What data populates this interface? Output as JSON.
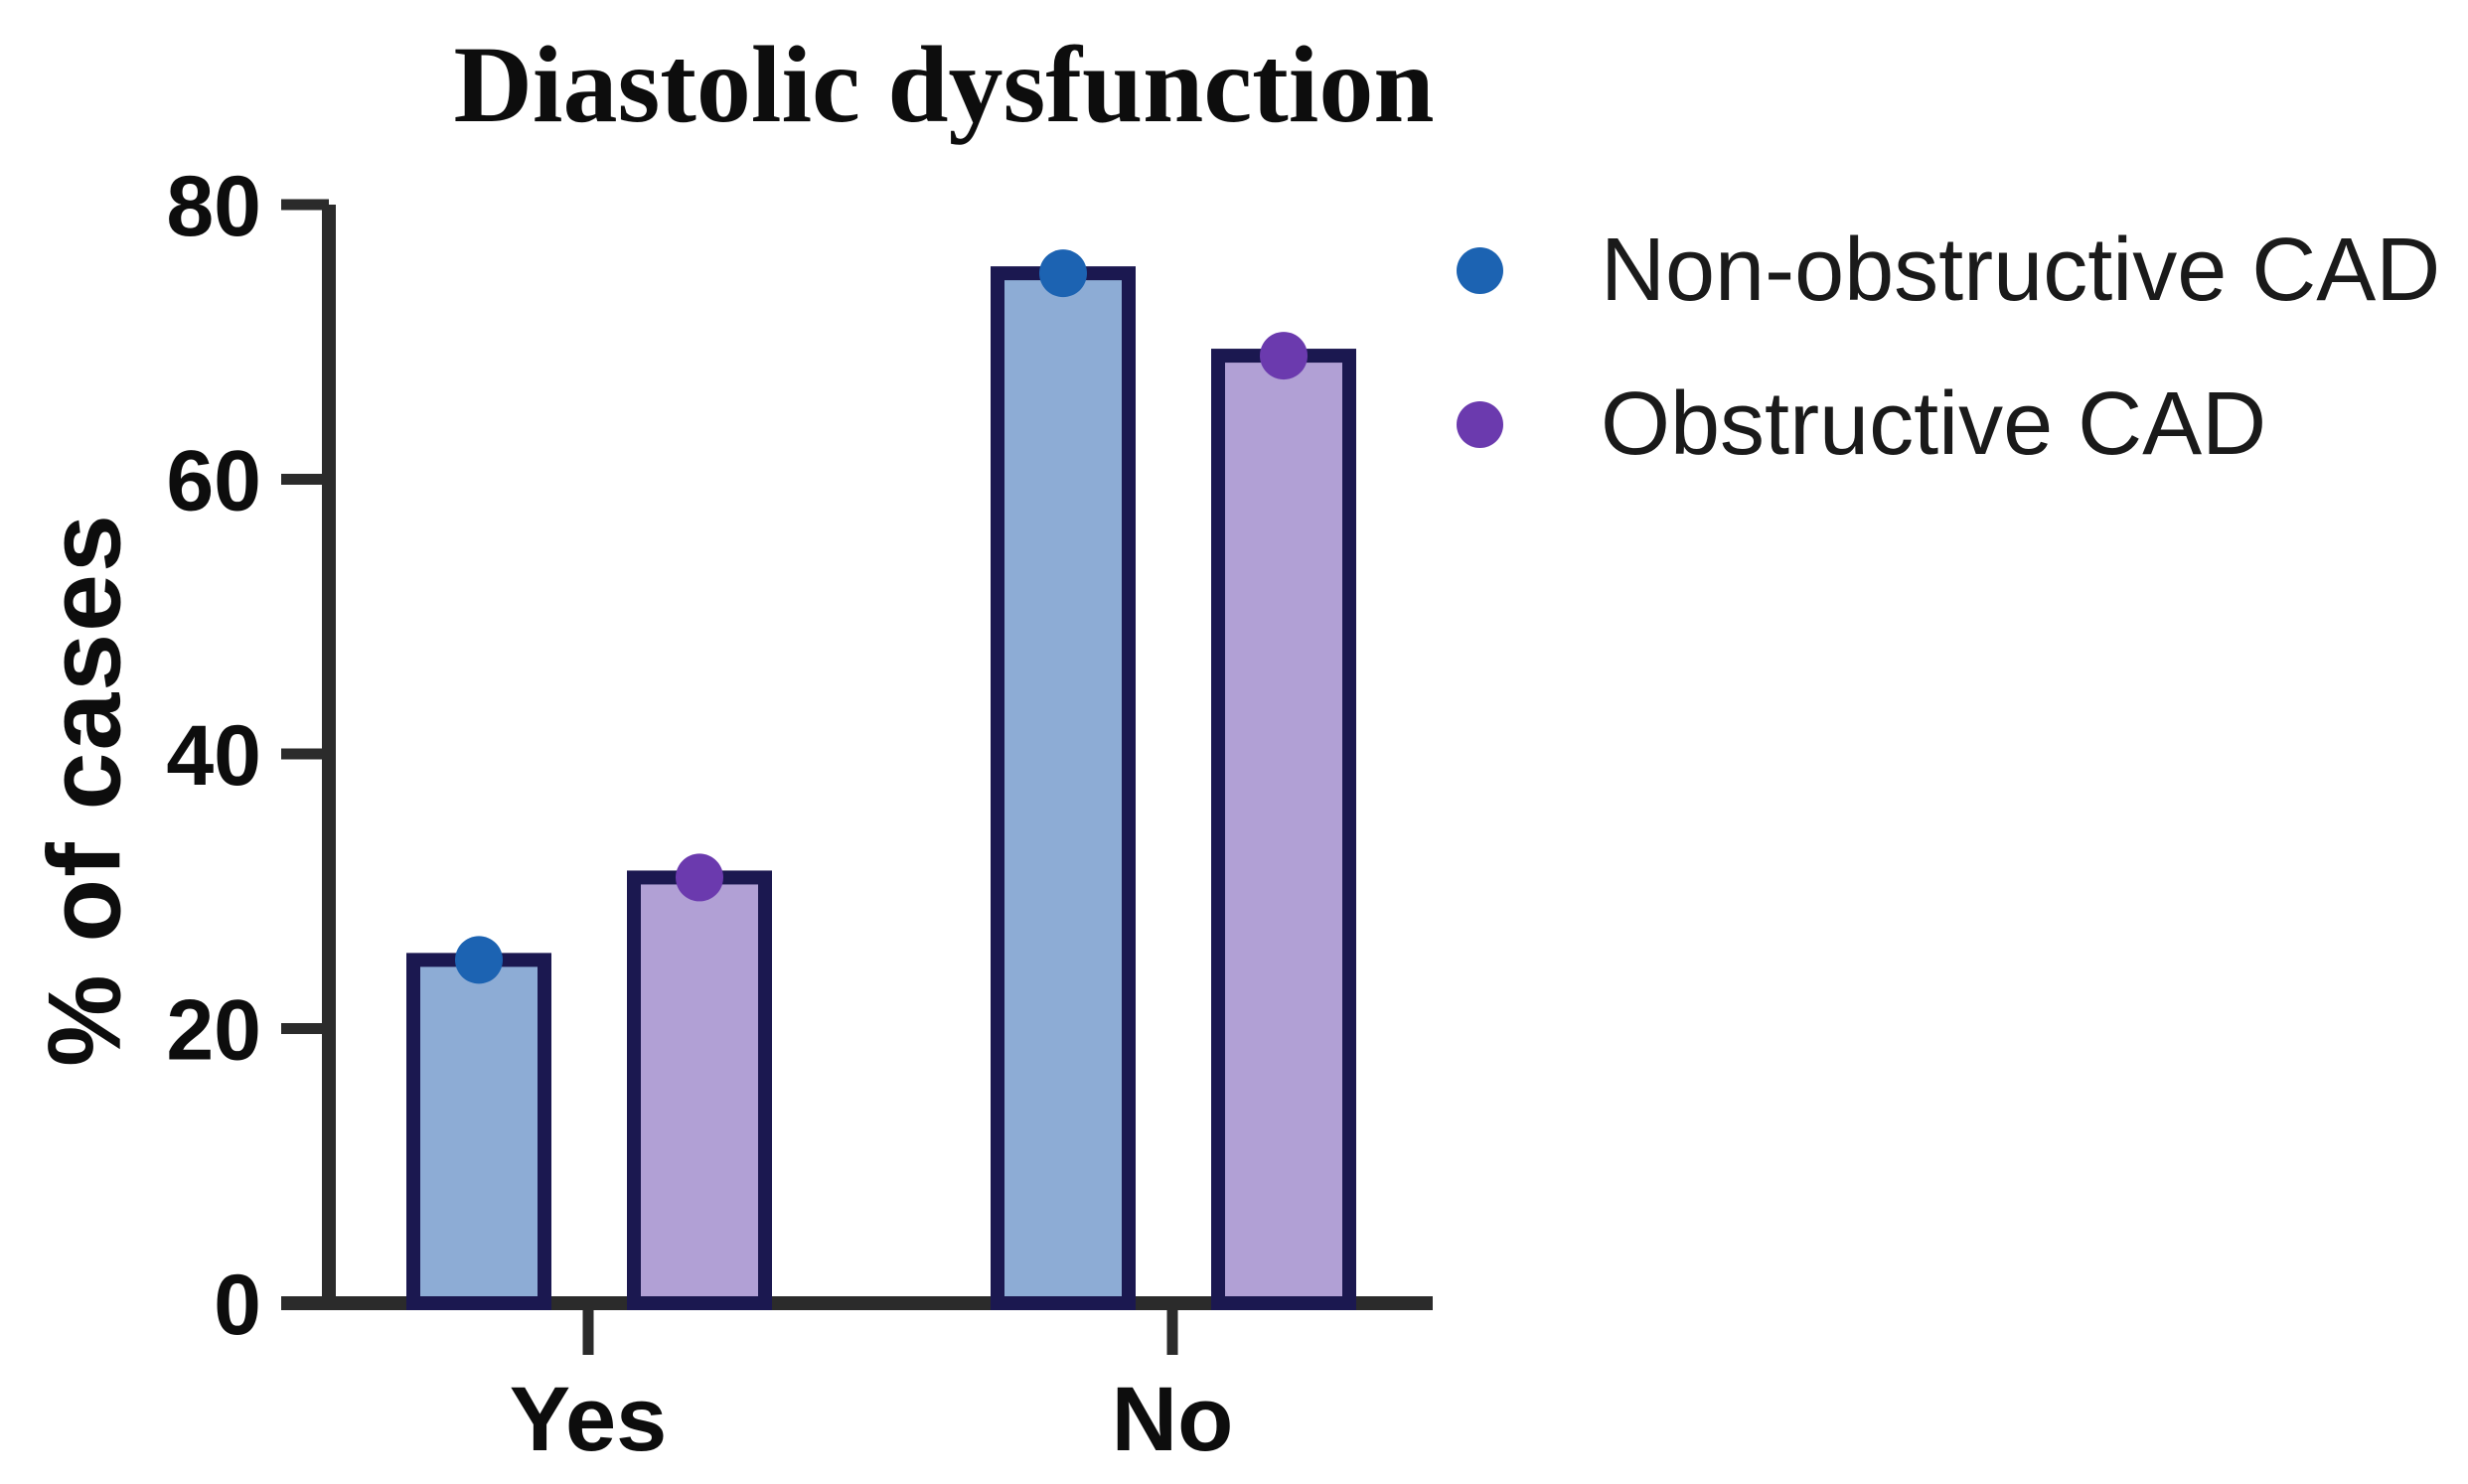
{
  "title": "Diastolic dysfunction",
  "chart_data": {
    "type": "bar",
    "title": "Diastolic dysfunction",
    "ylabel": "% of cases",
    "xlabel": "",
    "categories": [
      "Yes",
      "No"
    ],
    "series": [
      {
        "name": "Non-obstructive CAD",
        "values": [
          25,
          75
        ],
        "fill_color": "#8DACD5",
        "dot_color": "#1C63B2"
      },
      {
        "name": "Obstructive CAD",
        "values": [
          31,
          69
        ],
        "fill_color": "#B1A0D5",
        "dot_color": "#6B3AAE"
      }
    ],
    "ylim": [
      0,
      80
    ],
    "yticks": [
      0,
      20,
      40,
      60,
      80
    ],
    "grid": false,
    "legend_position": "right",
    "bar_border_color": "#1B1850",
    "axis_color": "#2b2b2b",
    "text_color": "#0d0d0d"
  }
}
